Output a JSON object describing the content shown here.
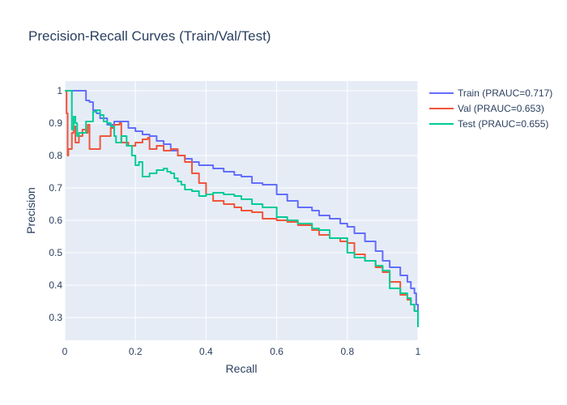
{
  "chart_data": {
    "type": "line",
    "title": "Precision-Recall Curves (Train/Val/Test)",
    "xlabel": "Recall",
    "ylabel": "Precision",
    "xlim": [
      0,
      1
    ],
    "ylim": [
      0.23,
      1.03
    ],
    "grid": true,
    "legend_position": "top-right",
    "xticks": [
      0,
      0.2,
      0.4,
      0.6,
      0.8,
      1
    ],
    "yticks": [
      0.3,
      0.4,
      0.5,
      0.6,
      0.7,
      0.8,
      0.9,
      1
    ],
    "xtick_labels": [
      "0",
      "0.2",
      "0.4",
      "0.6",
      "0.8",
      "1"
    ],
    "ytick_labels": [
      "0.3",
      "0.4",
      "0.5",
      "0.6",
      "0.7",
      "0.8",
      "0.9",
      "1"
    ],
    "series": [
      {
        "name": "Train (PRAUC=0.717)",
        "color": "#636efa",
        "x": [
          0.0,
          0.01,
          0.03,
          0.057,
          0.06,
          0.07,
          0.08,
          0.09,
          0.1,
          0.12,
          0.14,
          0.16,
          0.18,
          0.2,
          0.22,
          0.24,
          0.26,
          0.28,
          0.3,
          0.32,
          0.34,
          0.36,
          0.38,
          0.4,
          0.42,
          0.45,
          0.48,
          0.5,
          0.53,
          0.56,
          0.6,
          0.63,
          0.66,
          0.7,
          0.72,
          0.75,
          0.78,
          0.8,
          0.82,
          0.85,
          0.88,
          0.9,
          0.92,
          0.95,
          0.97,
          0.98,
          0.99,
          0.995,
          1.0
        ],
        "y": [
          1.0,
          1.0,
          1.0,
          1.0,
          0.97,
          0.965,
          0.94,
          0.93,
          0.915,
          0.895,
          0.905,
          0.905,
          0.885,
          0.875,
          0.865,
          0.86,
          0.845,
          0.835,
          0.815,
          0.8,
          0.79,
          0.78,
          0.77,
          0.77,
          0.76,
          0.75,
          0.74,
          0.735,
          0.715,
          0.71,
          0.68,
          0.66,
          0.64,
          0.63,
          0.615,
          0.605,
          0.59,
          0.58,
          0.56,
          0.535,
          0.505,
          0.475,
          0.455,
          0.43,
          0.41,
          0.39,
          0.375,
          0.34,
          0.29
        ]
      },
      {
        "name": "Val (PRAUC=0.653)",
        "color": "#ef553b",
        "x": [
          0.0,
          0.005,
          0.008,
          0.01,
          0.02,
          0.025,
          0.03,
          0.04,
          0.05,
          0.06,
          0.065,
          0.07,
          0.1,
          0.13,
          0.14,
          0.155,
          0.16,
          0.18,
          0.2,
          0.22,
          0.235,
          0.24,
          0.26,
          0.28,
          0.3,
          0.32,
          0.34,
          0.36,
          0.38,
          0.4,
          0.42,
          0.45,
          0.48,
          0.5,
          0.53,
          0.56,
          0.6,
          0.63,
          0.66,
          0.7,
          0.72,
          0.75,
          0.78,
          0.8,
          0.82,
          0.85,
          0.88,
          0.9,
          0.92,
          0.95,
          0.97,
          0.98,
          0.99,
          1.0
        ],
        "y": [
          1.0,
          0.93,
          0.8,
          0.82,
          0.87,
          0.89,
          0.84,
          0.86,
          0.88,
          0.87,
          0.895,
          0.82,
          0.86,
          0.885,
          0.895,
          0.9,
          0.84,
          0.83,
          0.84,
          0.85,
          0.855,
          0.82,
          0.83,
          0.815,
          0.82,
          0.8,
          0.78,
          0.745,
          0.715,
          0.68,
          0.66,
          0.65,
          0.64,
          0.63,
          0.625,
          0.605,
          0.6,
          0.595,
          0.585,
          0.57,
          0.555,
          0.545,
          0.535,
          0.53,
          0.495,
          0.475,
          0.455,
          0.44,
          0.41,
          0.37,
          0.355,
          0.34,
          0.32,
          0.28
        ]
      },
      {
        "name": "Test (PRAUC=0.655)",
        "color": "#00cc96",
        "x": [
          0.0,
          0.005,
          0.01,
          0.02,
          0.025,
          0.03,
          0.035,
          0.04,
          0.06,
          0.08,
          0.09,
          0.1,
          0.11,
          0.12,
          0.13,
          0.14,
          0.145,
          0.16,
          0.175,
          0.19,
          0.2,
          0.21,
          0.22,
          0.24,
          0.26,
          0.28,
          0.29,
          0.3,
          0.31,
          0.32,
          0.33,
          0.34,
          0.36,
          0.38,
          0.4,
          0.42,
          0.45,
          0.48,
          0.5,
          0.53,
          0.56,
          0.6,
          0.63,
          0.66,
          0.7,
          0.72,
          0.75,
          0.78,
          0.8,
          0.82,
          0.85,
          0.88,
          0.9,
          0.92,
          0.95,
          0.97,
          0.98,
          0.99,
          1.0
        ],
        "y": [
          1.0,
          1.0,
          1.0,
          0.88,
          0.92,
          0.9,
          0.86,
          0.87,
          0.905,
          0.935,
          0.94,
          0.925,
          0.905,
          0.9,
          0.89,
          0.86,
          0.84,
          0.86,
          0.83,
          0.8,
          0.77,
          0.78,
          0.735,
          0.745,
          0.755,
          0.76,
          0.75,
          0.745,
          0.73,
          0.72,
          0.71,
          0.695,
          0.69,
          0.675,
          0.68,
          0.685,
          0.68,
          0.675,
          0.665,
          0.65,
          0.64,
          0.61,
          0.6,
          0.59,
          0.575,
          0.57,
          0.545,
          0.545,
          0.5,
          0.485,
          0.475,
          0.46,
          0.445,
          0.39,
          0.375,
          0.36,
          0.34,
          0.32,
          0.27
        ]
      }
    ]
  }
}
